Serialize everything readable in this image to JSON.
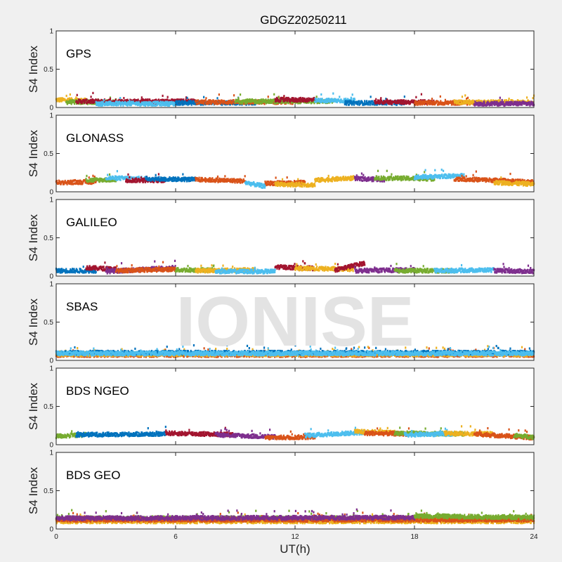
{
  "chart_data": {
    "type": "scatter",
    "title": "GDGZ20250211",
    "xlabel": "UT(h)",
    "ylabel": "S4 Index",
    "xlim": [
      0,
      24
    ],
    "xticks": [
      "0",
      "6",
      "12",
      "18",
      "24"
    ],
    "ylim": [
      0,
      1
    ],
    "yticks": [
      "0",
      "0.5",
      "1"
    ],
    "grid": false,
    "legend": "none",
    "watermark": "IONISE",
    "colors": [
      "#0072bd",
      "#d95319",
      "#edb120",
      "#7e2f8e",
      "#77ac30",
      "#4dbeee",
      "#a2142f"
    ],
    "panels": [
      {
        "label": "GPS",
        "segments": [
          {
            "color": "#edb120",
            "x": [
              0,
              1.5
            ],
            "y": [
              0.1,
              0.09
            ]
          },
          {
            "color": "#77ac30",
            "x": [
              0.5,
              3
            ],
            "y": [
              0.07,
              0.07
            ]
          },
          {
            "color": "#a2142f",
            "x": [
              1,
              7
            ],
            "y": [
              0.08,
              0.08
            ]
          },
          {
            "color": "#4dbeee",
            "x": [
              2,
              6
            ],
            "y": [
              0.05,
              0.05
            ]
          },
          {
            "color": "#0072bd",
            "x": [
              6,
              10
            ],
            "y": [
              0.06,
              0.06
            ]
          },
          {
            "color": "#d95319",
            "x": [
              7,
              12
            ],
            "y": [
              0.07,
              0.07
            ]
          },
          {
            "color": "#77ac30",
            "x": [
              9,
              14
            ],
            "y": [
              0.08,
              0.08
            ]
          },
          {
            "color": "#a2142f",
            "x": [
              11,
              13
            ],
            "y": [
              0.1,
              0.1
            ]
          },
          {
            "color": "#4dbeee",
            "x": [
              13,
              15
            ],
            "y": [
              0.09,
              0.09
            ]
          },
          {
            "color": "#0072bd",
            "x": [
              14.5,
              17.5
            ],
            "y": [
              0.06,
              0.06
            ]
          },
          {
            "color": "#a2142f",
            "x": [
              16,
              19
            ],
            "y": [
              0.07,
              0.07
            ]
          },
          {
            "color": "#d95319",
            "x": [
              18,
              21
            ],
            "y": [
              0.06,
              0.06
            ]
          },
          {
            "color": "#edb120",
            "x": [
              20,
              24
            ],
            "y": [
              0.07,
              0.07
            ]
          },
          {
            "color": "#7e2f8e",
            "x": [
              21,
              24
            ],
            "y": [
              0.05,
              0.05
            ]
          }
        ]
      },
      {
        "label": "GLONASS",
        "segments": [
          {
            "color": "#d95319",
            "x": [
              0,
              2
            ],
            "y": [
              0.12,
              0.13
            ]
          },
          {
            "color": "#77ac30",
            "x": [
              1.5,
              3
            ],
            "y": [
              0.15,
              0.16
            ]
          },
          {
            "color": "#4dbeee",
            "x": [
              2.5,
              4.5
            ],
            "y": [
              0.18,
              0.17
            ]
          },
          {
            "color": "#a2142f",
            "x": [
              3.5,
              5.5
            ],
            "y": [
              0.15,
              0.15
            ]
          },
          {
            "color": "#0072bd",
            "x": [
              4.5,
              7
            ],
            "y": [
              0.17,
              0.16
            ]
          },
          {
            "color": "#d95319",
            "x": [
              7,
              9.5
            ],
            "y": [
              0.16,
              0.14
            ]
          },
          {
            "color": "#4dbeee",
            "x": [
              9.5,
              10.5
            ],
            "y": [
              0.12,
              0.07
            ]
          },
          {
            "color": "#d95319",
            "x": [
              10.5,
              12.5
            ],
            "y": [
              0.11,
              0.12
            ]
          },
          {
            "color": "#edb120",
            "x": [
              11,
              13
            ],
            "y": [
              0.1,
              0.09
            ]
          },
          {
            "color": "#edb120",
            "x": [
              13,
              15
            ],
            "y": [
              0.15,
              0.18
            ]
          },
          {
            "color": "#7e2f8e",
            "x": [
              15,
              16.5
            ],
            "y": [
              0.17,
              0.16
            ]
          },
          {
            "color": "#77ac30",
            "x": [
              16,
              19
            ],
            "y": [
              0.18,
              0.17
            ]
          },
          {
            "color": "#4dbeee",
            "x": [
              18,
              20.5
            ],
            "y": [
              0.19,
              0.21
            ]
          },
          {
            "color": "#d95319",
            "x": [
              20,
              24
            ],
            "y": [
              0.17,
              0.13
            ]
          },
          {
            "color": "#edb120",
            "x": [
              22,
              24
            ],
            "y": [
              0.12,
              0.1
            ]
          }
        ]
      },
      {
        "label": "GALILEO",
        "segments": [
          {
            "color": "#0072bd",
            "x": [
              0,
              2
            ],
            "y": [
              0.07,
              0.07
            ]
          },
          {
            "color": "#a2142f",
            "x": [
              1.5,
              3
            ],
            "y": [
              0.11,
              0.09
            ]
          },
          {
            "color": "#7e2f8e",
            "x": [
              2.5,
              6
            ],
            "y": [
              0.06,
              0.11
            ]
          },
          {
            "color": "#d95319",
            "x": [
              3,
              6
            ],
            "y": [
              0.07,
              0.09
            ]
          },
          {
            "color": "#77ac30",
            "x": [
              6,
              8
            ],
            "y": [
              0.08,
              0.08
            ]
          },
          {
            "color": "#edb120",
            "x": [
              7,
              10
            ],
            "y": [
              0.07,
              0.08
            ]
          },
          {
            "color": "#4dbeee",
            "x": [
              8,
              11
            ],
            "y": [
              0.06,
              0.06
            ]
          },
          {
            "color": "#a2142f",
            "x": [
              11,
              13
            ],
            "y": [
              0.12,
              0.1
            ]
          },
          {
            "color": "#edb120",
            "x": [
              12,
              15
            ],
            "y": [
              0.1,
              0.09
            ]
          },
          {
            "color": "#a2142f",
            "x": [
              14,
              15.5
            ],
            "y": [
              0.08,
              0.17
            ]
          },
          {
            "color": "#7e2f8e",
            "x": [
              15,
              18
            ],
            "y": [
              0.07,
              0.08
            ]
          },
          {
            "color": "#77ac30",
            "x": [
              17,
              20
            ],
            "y": [
              0.07,
              0.07
            ]
          },
          {
            "color": "#4dbeee",
            "x": [
              19,
              22
            ],
            "y": [
              0.07,
              0.08
            ]
          },
          {
            "color": "#7e2f8e",
            "x": [
              22,
              24
            ],
            "y": [
              0.07,
              0.06
            ]
          }
        ]
      },
      {
        "label": "SBAS",
        "segments": [
          {
            "color": "#d95319",
            "x": [
              0,
              24
            ],
            "y": [
              0.07,
              0.07
            ]
          },
          {
            "color": "#edb120",
            "x": [
              0,
              24
            ],
            "y": [
              0.08,
              0.08
            ]
          },
          {
            "color": "#0072bd",
            "x": [
              0,
              24
            ],
            "y": [
              0.1,
              0.1
            ]
          },
          {
            "color": "#4dbeee",
            "x": [
              0,
              24
            ],
            "y": [
              0.09,
              0.09
            ]
          }
        ]
      },
      {
        "label": "BDS NGEO",
        "segments": [
          {
            "color": "#77ac30",
            "x": [
              0,
              1.5
            ],
            "y": [
              0.11,
              0.13
            ]
          },
          {
            "color": "#0072bd",
            "x": [
              1,
              5.5
            ],
            "y": [
              0.13,
              0.14
            ]
          },
          {
            "color": "#a2142f",
            "x": [
              5.5,
              9
            ],
            "y": [
              0.15,
              0.13
            ]
          },
          {
            "color": "#7e2f8e",
            "x": [
              8,
              11
            ],
            "y": [
              0.13,
              0.1
            ]
          },
          {
            "color": "#d95319",
            "x": [
              10.5,
              13
            ],
            "y": [
              0.09,
              0.1
            ]
          },
          {
            "color": "#4dbeee",
            "x": [
              12.5,
              15.5
            ],
            "y": [
              0.12,
              0.16
            ]
          },
          {
            "color": "#edb120",
            "x": [
              15,
              17
            ],
            "y": [
              0.17,
              0.16
            ]
          },
          {
            "color": "#d95319",
            "x": [
              15.5,
              18
            ],
            "y": [
              0.15,
              0.14
            ]
          },
          {
            "color": "#77ac30",
            "x": [
              17,
              20.5
            ],
            "y": [
              0.15,
              0.14
            ]
          },
          {
            "color": "#4dbeee",
            "x": [
              17.5,
              20
            ],
            "y": [
              0.13,
              0.14
            ]
          },
          {
            "color": "#edb120",
            "x": [
              19.5,
              22
            ],
            "y": [
              0.15,
              0.14
            ]
          },
          {
            "color": "#d95319",
            "x": [
              21,
              24
            ],
            "y": [
              0.14,
              0.09
            ]
          },
          {
            "color": "#77ac30",
            "x": [
              23,
              24
            ],
            "y": [
              0.12,
              0.1
            ]
          }
        ]
      },
      {
        "label": "BDS GEO",
        "segments": [
          {
            "color": "#77ac30",
            "x": [
              0,
              24
            ],
            "y": [
              0.14,
              0.14
            ]
          },
          {
            "color": "#edb120",
            "x": [
              0,
              24
            ],
            "y": [
              0.1,
              0.1
            ]
          },
          {
            "color": "#d95319",
            "x": [
              0,
              24
            ],
            "y": [
              0.12,
              0.12
            ]
          },
          {
            "color": "#7e2f8e",
            "x": [
              0,
              18
            ],
            "y": [
              0.14,
              0.15
            ]
          },
          {
            "color": "#77ac30",
            "x": [
              18,
              24
            ],
            "y": [
              0.17,
              0.15
            ]
          }
        ]
      }
    ]
  }
}
